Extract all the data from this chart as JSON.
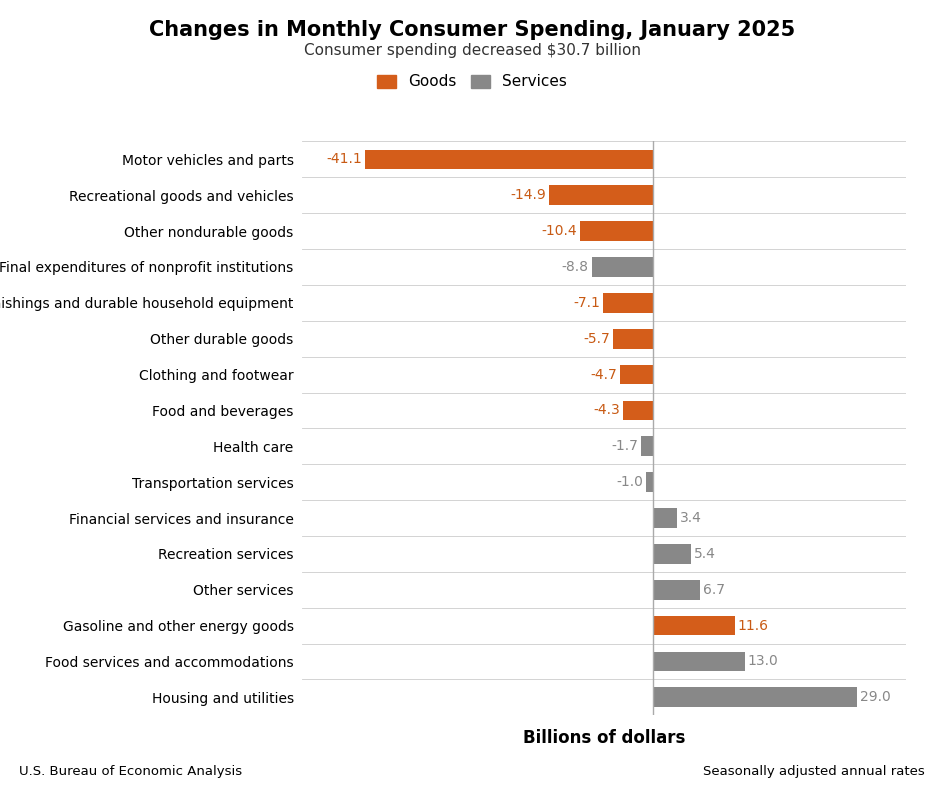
{
  "title": "Changes in Monthly Consumer Spending, January 2025",
  "subtitle": "Consumer spending decreased $30.7 billion",
  "xlabel": "Billions of dollars",
  "footer_left": "U.S. Bureau of Economic Analysis",
  "footer_right": "Seasonally adjusted annual rates",
  "legend_labels": [
    "Goods",
    "Services"
  ],
  "goods_color": "#D45D1A",
  "services_color": "#888888",
  "value_color_goods": "#C85A14",
  "value_color_services": "#888888",
  "categories": [
    "Motor vehicles and parts",
    "Recreational goods and vehicles",
    "Other nondurable goods",
    "Final expenditures of nonprofit institutions",
    "Furnishings and durable household equipment",
    "Other durable goods",
    "Clothing and footwear",
    "Food and beverages",
    "Health care",
    "Transportation services",
    "Financial services and insurance",
    "Recreation services",
    "Other services",
    "Gasoline and other energy goods",
    "Food services and accommodations",
    "Housing and utilities"
  ],
  "values": [
    -41.1,
    -14.9,
    -10.4,
    -8.8,
    -7.1,
    -5.7,
    -4.7,
    -4.3,
    -1.7,
    -1.0,
    3.4,
    5.4,
    6.7,
    11.6,
    13.0,
    29.0
  ],
  "value_labels": [
    "-41.1",
    "-14.9",
    "-10.4",
    "-8.8",
    "-7.1",
    "-5.7",
    "-4.7",
    "-4.3",
    "-1.7",
    "-1.0",
    "3.4",
    "5.4",
    "6.7",
    "11.6",
    "13.0",
    "29.0"
  ],
  "types": [
    "goods",
    "goods",
    "goods",
    "services",
    "goods",
    "goods",
    "goods",
    "goods",
    "services",
    "services",
    "services",
    "services",
    "services",
    "goods",
    "services",
    "services"
  ],
  "background_color": "#FFFFFF",
  "bar_height": 0.55,
  "xlim_min": -50,
  "xlim_max": 36,
  "title_fontsize": 15,
  "subtitle_fontsize": 11,
  "label_fontsize": 10,
  "value_fontsize": 10
}
